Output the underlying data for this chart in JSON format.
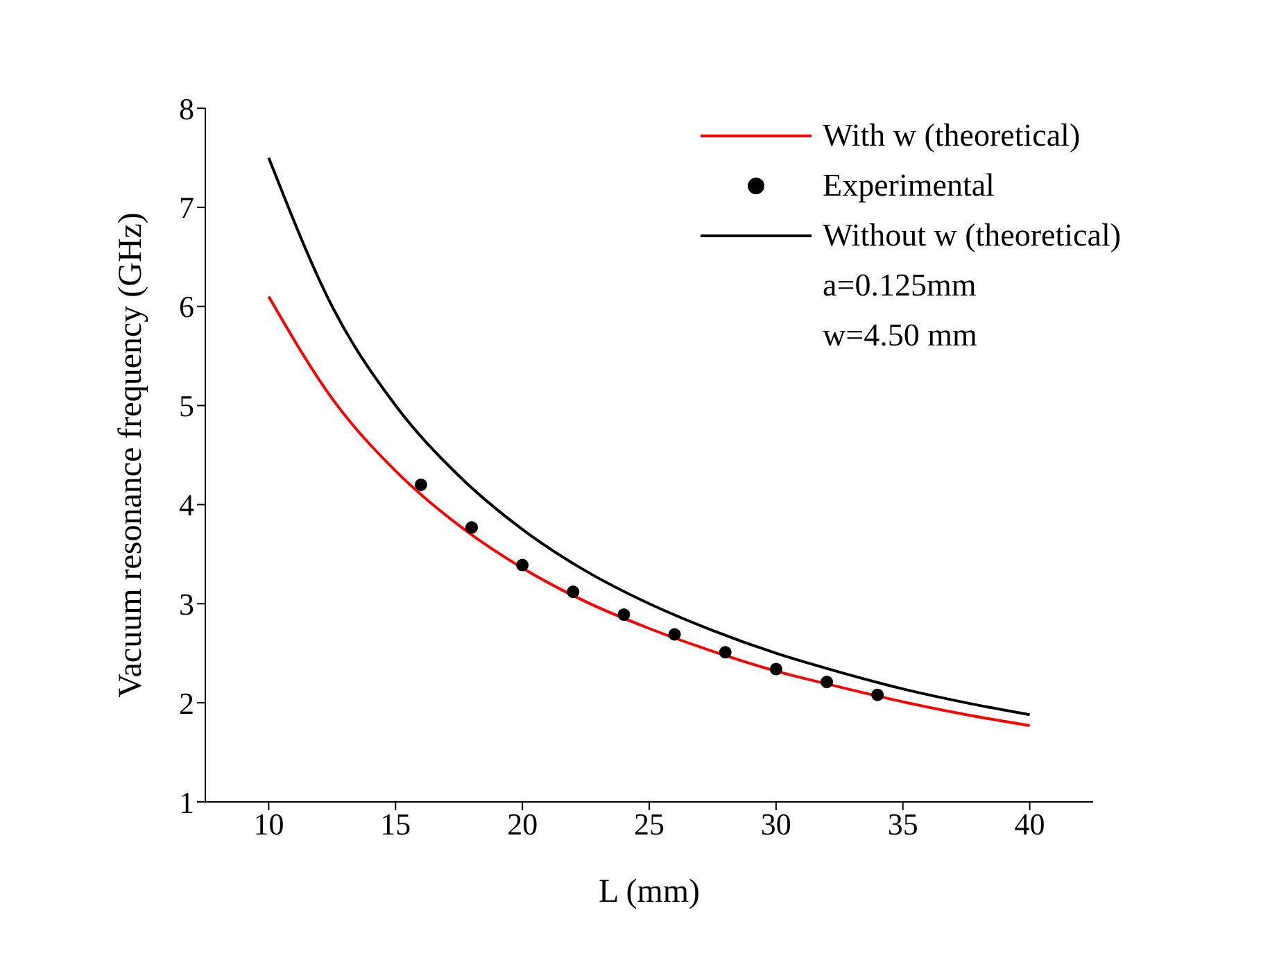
{
  "chart_data": {
    "type": "line",
    "xlabel": "L (mm)",
    "ylabel": "Vacuum resonance frequency (GHz)",
    "xlim": [
      7.5,
      42.5
    ],
    "xticks": [
      10,
      15,
      20,
      25,
      30,
      35,
      40
    ],
    "ylim": [
      1,
      8
    ],
    "yticks": [
      1,
      2,
      3,
      4,
      5,
      6,
      7,
      8
    ],
    "grid": false,
    "legend": "top right",
    "line_style": "solid",
    "series": [
      {
        "name": "With w (theoretical)",
        "color": "#ff0000",
        "x": [
          10,
          12.5,
          15,
          17.5,
          20,
          22.5,
          25,
          27.5,
          30,
          32.5,
          35,
          37.5,
          40
        ],
        "values": [
          6.1,
          5.07,
          4.34,
          3.79,
          3.36,
          3.02,
          2.75,
          2.52,
          2.32,
          2.16,
          2.01,
          1.88,
          1.77
        ]
      },
      {
        "name": "Experimental",
        "type": "scatter",
        "marker": "circle",
        "color": "#000000",
        "x": [
          16,
          18,
          20,
          22,
          24,
          26,
          28,
          30,
          32,
          34
        ],
        "values": [
          4.2,
          3.77,
          3.39,
          3.12,
          2.89,
          2.69,
          2.51,
          2.34,
          2.21,
          2.08
        ]
      },
      {
        "name": "Without w (theoretical)",
        "color": "#000000",
        "x": [
          10,
          12.5,
          15,
          17.5,
          20,
          22.5,
          25,
          27.5,
          30,
          32.5,
          35,
          37.5,
          40
        ],
        "values": [
          7.5,
          6.0,
          5.0,
          4.29,
          3.75,
          3.33,
          3.0,
          2.73,
          2.5,
          2.31,
          2.14,
          2.0,
          1.88
        ]
      }
    ],
    "annotations": [
      "a=0.125mm",
      "w=4.50 mm"
    ]
  }
}
